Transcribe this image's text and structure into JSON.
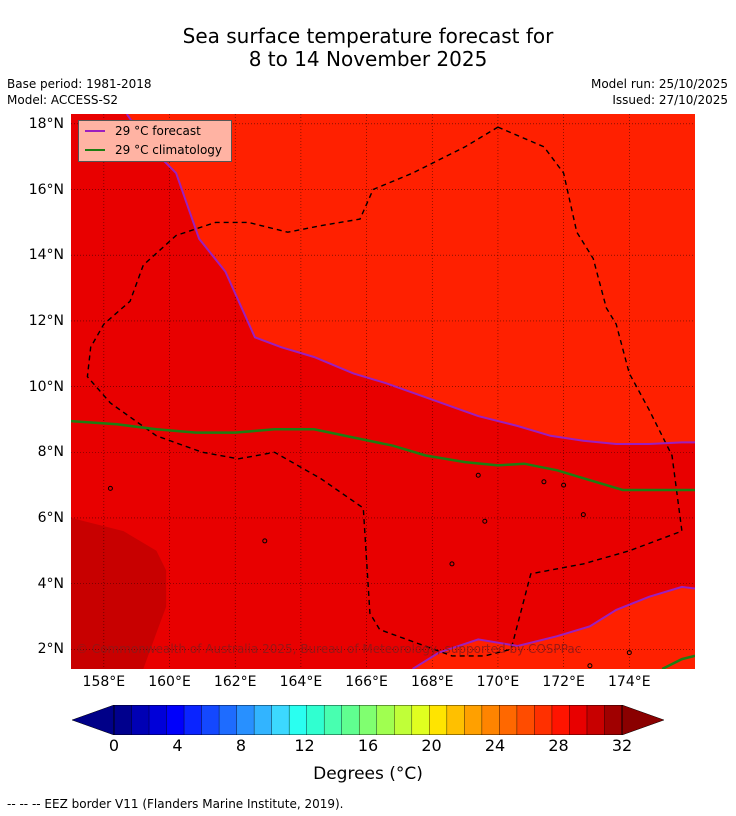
{
  "title": {
    "line1": "Sea surface temperature forecast for",
    "line2": "8 to 14 November 2025"
  },
  "meta": {
    "base_period": "Base period: 1981-2018",
    "model": "Model: ACCESS-S2",
    "model_run": "Model run: 25/10/2025",
    "issued": "Issued: 27/10/2025"
  },
  "map": {
    "lon_range": [
      157,
      176
    ],
    "lat_range": [
      1.4,
      18.3
    ],
    "lat_ticks": [
      {
        "value": 18,
        "label": "18°N"
      },
      {
        "value": 16,
        "label": "16°N"
      },
      {
        "value": 14,
        "label": "14°N"
      },
      {
        "value": 12,
        "label": "12°N"
      },
      {
        "value": 10,
        "label": "10°N"
      },
      {
        "value": 8,
        "label": "8°N"
      },
      {
        "value": 6,
        "label": "6°N"
      },
      {
        "value": 4,
        "label": "4°N"
      },
      {
        "value": 2,
        "label": "2°N"
      }
    ],
    "lon_ticks": [
      {
        "value": 158,
        "label": "158°E"
      },
      {
        "value": 160,
        "label": "160°E"
      },
      {
        "value": 162,
        "label": "162°E"
      },
      {
        "value": 164,
        "label": "164°E"
      },
      {
        "value": 166,
        "label": "166°E"
      },
      {
        "value": 168,
        "label": "168°E"
      },
      {
        "value": 170,
        "label": "170°E"
      },
      {
        "value": 172,
        "label": "172°E"
      },
      {
        "value": 174,
        "label": "174°E"
      }
    ],
    "colors": {
      "warm_30": "#ff2000",
      "warm_29": "#e80000",
      "warm_28": "#c80000",
      "forecast_line": "#9b1fbf",
      "climatology_line": "#1e7d12",
      "eez": "#000000"
    },
    "forecast_29_north": [
      [
        158.7,
        18.3
      ],
      [
        159.4,
        17.3
      ],
      [
        160.2,
        16.5
      ],
      [
        160.9,
        14.5
      ],
      [
        161.7,
        13.5
      ],
      [
        162.6,
        11.5
      ],
      [
        163.4,
        11.2
      ],
      [
        164.4,
        10.9
      ],
      [
        165.6,
        10.4
      ],
      [
        166.6,
        10.1
      ],
      [
        168.0,
        9.6
      ],
      [
        169.4,
        9.1
      ],
      [
        170.6,
        8.8
      ],
      [
        171.6,
        8.5
      ],
      [
        172.6,
        8.35
      ],
      [
        173.6,
        8.25
      ],
      [
        174.6,
        8.25
      ],
      [
        175.6,
        8.3
      ],
      [
        176,
        8.3
      ]
    ],
    "forecast_29_south": [
      [
        167.4,
        1.4
      ],
      [
        168.2,
        1.9
      ],
      [
        169.4,
        2.3
      ],
      [
        170.6,
        2.1
      ],
      [
        171.8,
        2.4
      ],
      [
        172.8,
        2.7
      ],
      [
        173.6,
        3.2
      ],
      [
        174.6,
        3.6
      ],
      [
        175.6,
        3.9
      ],
      [
        176,
        3.85
      ]
    ],
    "climatology_29": [
      [
        157,
        8.95
      ],
      [
        158.4,
        8.85
      ],
      [
        159.6,
        8.7
      ],
      [
        160.8,
        8.6
      ],
      [
        162.0,
        8.6
      ],
      [
        163.2,
        8.7
      ],
      [
        164.4,
        8.7
      ],
      [
        165.6,
        8.45
      ],
      [
        166.8,
        8.2
      ],
      [
        167.8,
        7.9
      ],
      [
        169.0,
        7.7
      ],
      [
        170.0,
        7.6
      ],
      [
        170.8,
        7.65
      ],
      [
        171.8,
        7.45
      ],
      [
        172.8,
        7.15
      ],
      [
        173.8,
        6.85
      ],
      [
        174.8,
        6.85
      ],
      [
        176,
        6.85
      ]
    ],
    "climatology_29_se": [
      [
        175.0,
        1.4
      ],
      [
        175.6,
        1.7
      ],
      [
        176,
        1.8
      ]
    ],
    "cool_region": [
      [
        157,
        6.0
      ],
      [
        158.6,
        5.6
      ],
      [
        159.6,
        5.0
      ],
      [
        159.9,
        4.4
      ],
      [
        159.9,
        3.3
      ],
      [
        159.6,
        2.5
      ],
      [
        159.2,
        1.4
      ],
      [
        157,
        1.4
      ]
    ],
    "eez_border": [
      [
        170.0,
        17.9
      ],
      [
        171.4,
        17.3
      ],
      [
        172.0,
        16.5
      ],
      [
        172.4,
        14.7
      ],
      [
        172.9,
        13.9
      ],
      [
        173.3,
        12.4
      ],
      [
        173.6,
        11.9
      ],
      [
        174.0,
        10.4
      ],
      [
        174.6,
        9.3
      ],
      [
        175.3,
        7.9
      ],
      [
        175.6,
        5.6
      ],
      [
        174.0,
        5.0
      ],
      [
        172.6,
        4.6
      ],
      [
        171.0,
        4.3
      ],
      [
        170.4,
        2.0
      ],
      [
        169.6,
        1.8
      ],
      [
        168.6,
        1.8
      ],
      [
        167.5,
        2.2
      ],
      [
        166.4,
        2.6
      ],
      [
        166.1,
        3.1
      ],
      [
        165.9,
        6.3
      ],
      [
        164.6,
        7.2
      ],
      [
        163.2,
        8.0
      ],
      [
        162.1,
        7.8
      ],
      [
        161.0,
        8.0
      ],
      [
        159.6,
        8.5
      ],
      [
        158.2,
        9.5
      ],
      [
        157.5,
        10.3
      ],
      [
        157.6,
        11.2
      ],
      [
        158.0,
        11.9
      ],
      [
        158.8,
        12.6
      ],
      [
        159.2,
        13.7
      ],
      [
        160.2,
        14.6
      ],
      [
        161.4,
        15.0
      ],
      [
        162.4,
        15.0
      ],
      [
        163.6,
        14.7
      ],
      [
        164.6,
        14.9
      ],
      [
        165.8,
        15.1
      ],
      [
        166.2,
        16.0
      ],
      [
        167.4,
        16.5
      ],
      [
        169.0,
        17.3
      ],
      [
        170.0,
        17.9
      ]
    ],
    "islands": [
      [
        158.2,
        6.9
      ],
      [
        162.9,
        5.3
      ],
      [
        169.4,
        7.3
      ],
      [
        171.4,
        7.1
      ],
      [
        172.0,
        7.0
      ],
      [
        172.8,
        1.5
      ],
      [
        174.0,
        1.9
      ],
      [
        168.6,
        4.6
      ],
      [
        169.6,
        5.9
      ],
      [
        172.6,
        6.1
      ]
    ]
  },
  "legend": {
    "items": [
      {
        "label": "29 °C  forecast",
        "color": "#9b1fbf"
      },
      {
        "label": "29 °C  climatology",
        "color": "#1e7d12"
      }
    ]
  },
  "copyright": "© Commonwealth of Australia 2025, Bureau of Meteorology, supported by COSPPac",
  "colorbar": {
    "colors": [
      "#00008d",
      "#0000b4",
      "#0000d9",
      "#0000fb",
      "#0a24ff",
      "#1448ff",
      "#1e6cff",
      "#2890ff",
      "#32b4ff",
      "#3cd8ff",
      "#2afff0",
      "#30ffd0",
      "#48ffb0",
      "#60ff90",
      "#80ff70",
      "#a0ff50",
      "#c0ff38",
      "#e0ff20",
      "#ffe400",
      "#ffc000",
      "#ffa000",
      "#ff8400",
      "#ff6800",
      "#ff4c00",
      "#ff3000",
      "#ff1400",
      "#e80000",
      "#c80000",
      "#a00000"
    ],
    "under_color": "#000088",
    "over_color": "#8a0000",
    "tick_labels": [
      "0",
      "4",
      "8",
      "12",
      "16",
      "20",
      "24",
      "28",
      "32"
    ],
    "label": "Degrees (°C)"
  },
  "footnote": "--  --  -- EEZ border V11 (Flanders Marine Institute, 2019)."
}
